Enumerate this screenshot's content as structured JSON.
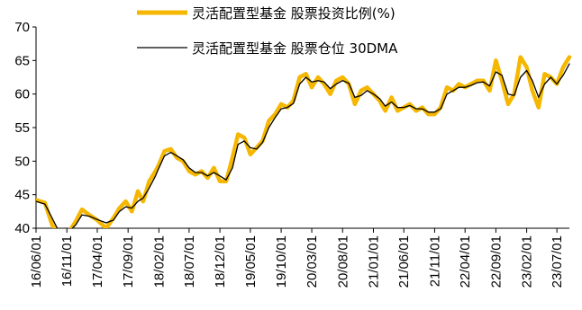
{
  "chart_data": {
    "type": "line",
    "title": "",
    "xlabel": "",
    "ylabel": "",
    "ylim": [
      40,
      70
    ],
    "yticks": [
      40,
      45,
      50,
      55,
      60,
      65,
      70
    ],
    "xticks": [
      "16/06/01",
      "16/11/01",
      "17/04/01",
      "17/09/01",
      "18/02/01",
      "18/07/01",
      "18/12/01",
      "19/05/01",
      "19/10/01",
      "20/03/01",
      "20/08/01",
      "21/01/01",
      "21/06/01",
      "21/11/01",
      "22/04/01",
      "22/09/01",
      "23/02/01",
      "23/07/01"
    ],
    "grid": false,
    "legend_position": "top-center",
    "series": [
      {
        "name": "灵活配置型基金 股票投资比例(%)",
        "color": "#F5B700",
        "style": "thick",
        "x": [
          "16/06/01",
          "16/07/15",
          "16/08/20",
          "16/10/01",
          "16/11/01",
          "16/12/15",
          "17/01/15",
          "17/02/20",
          "17/04/01",
          "17/05/15",
          "17/06/20",
          "17/07/20",
          "17/08/20",
          "17/09/20",
          "17/10/20",
          "17/11/15",
          "17/12/15",
          "18/01/15",
          "18/02/01",
          "18/03/01",
          "18/04/01",
          "18/05/01",
          "18/06/01",
          "18/07/01",
          "18/08/01",
          "18/09/01",
          "18/10/01",
          "18/11/01",
          "18/12/01",
          "19/01/01",
          "19/02/01",
          "19/03/01",
          "19/04/01",
          "19/05/01",
          "19/06/01",
          "19/07/01",
          "19/08/01",
          "19/09/01",
          "19/10/01",
          "19/11/01",
          "19/12/01",
          "20/01/01",
          "20/02/01",
          "20/03/01",
          "20/04/01",
          "20/05/01",
          "20/06/01",
          "20/07/01",
          "20/08/01",
          "20/09/01",
          "20/10/01",
          "20/11/01",
          "20/12/01",
          "21/01/01",
          "21/02/01",
          "21/03/01",
          "21/04/01",
          "21/05/01",
          "21/06/01",
          "21/07/01",
          "21/08/01",
          "21/09/01",
          "21/10/01",
          "21/11/01",
          "21/12/01",
          "22/01/01",
          "22/02/01",
          "22/03/01",
          "22/04/01",
          "22/05/01",
          "22/06/01",
          "22/07/01",
          "22/08/01",
          "22/09/01",
          "22/10/01",
          "22/11/01",
          "22/12/01",
          "23/01/01",
          "23/02/01",
          "23/03/01",
          "23/04/01",
          "23/05/01",
          "23/06/01",
          "23/07/01",
          "23/08/01",
          "23/09/01"
        ],
        "values": [
          44.2,
          43.8,
          40.5,
          38.5,
          39.0,
          41.0,
          42.8,
          42.0,
          41.2,
          40.0,
          41.5,
          43.0,
          44.0,
          42.5,
          45.5,
          44.0,
          47.0,
          48.5,
          49.5,
          51.5,
          51.8,
          50.5,
          50.0,
          48.5,
          48.0,
          48.5,
          47.5,
          49.0,
          47.0,
          47.0,
          50.5,
          54.0,
          53.5,
          51.0,
          52.0,
          53.0,
          56.0,
          57.0,
          58.5,
          58.0,
          59.0,
          62.5,
          63.0,
          61.0,
          62.5,
          61.5,
          60.0,
          62.0,
          62.5,
          61.5,
          58.5,
          60.5,
          61.0,
          60.0,
          59.0,
          57.5,
          59.5,
          57.5,
          58.0,
          58.5,
          57.5,
          58.0,
          57.0,
          57.0,
          58.0,
          61.0,
          60.5,
          61.5,
          61.0,
          61.5,
          62.0,
          62.0,
          60.5,
          65.0,
          62.0,
          58.5,
          60.0,
          65.5,
          64.0,
          60.5,
          58.0,
          63.0,
          62.5,
          61.5,
          64.0,
          65.5
        ]
      },
      {
        "name": "灵活配置型基金 股票仓位 30DMA",
        "color": "#000000",
        "style": "thin",
        "x": [
          "16/06/01",
          "16/07/15",
          "16/08/20",
          "16/10/01",
          "16/11/01",
          "16/12/15",
          "17/01/15",
          "17/02/20",
          "17/04/01",
          "17/05/15",
          "17/06/20",
          "17/07/20",
          "17/08/20",
          "17/09/20",
          "17/10/20",
          "17/11/15",
          "17/12/15",
          "18/01/15",
          "18/02/01",
          "18/03/01",
          "18/04/01",
          "18/05/01",
          "18/06/01",
          "18/07/01",
          "18/08/01",
          "18/09/01",
          "18/10/01",
          "18/11/01",
          "18/12/01",
          "19/01/01",
          "19/02/01",
          "19/03/01",
          "19/04/01",
          "19/05/01",
          "19/06/01",
          "19/07/01",
          "19/08/01",
          "19/09/01",
          "19/10/01",
          "19/11/01",
          "19/12/01",
          "20/01/01",
          "20/02/01",
          "20/03/01",
          "20/04/01",
          "20/05/01",
          "20/06/01",
          "20/07/01",
          "20/08/01",
          "20/09/01",
          "20/10/01",
          "20/11/01",
          "20/12/01",
          "21/01/01",
          "21/02/01",
          "21/03/01",
          "21/04/01",
          "21/05/01",
          "21/06/01",
          "21/07/01",
          "21/08/01",
          "21/09/01",
          "21/10/01",
          "21/11/01",
          "21/12/01",
          "22/01/01",
          "22/02/01",
          "22/03/01",
          "22/04/01",
          "22/05/01",
          "22/06/01",
          "22/07/01",
          "22/08/01",
          "22/09/01",
          "22/10/01",
          "22/11/01",
          "22/12/01",
          "23/01/01",
          "23/02/01",
          "23/03/01",
          "23/04/01",
          "23/05/01",
          "23/06/01",
          "23/07/01",
          "23/08/01",
          "23/09/01"
        ],
        "values": [
          44.0,
          43.6,
          41.5,
          39.0,
          39.2,
          40.5,
          42.0,
          41.8,
          41.3,
          40.8,
          41.2,
          42.5,
          43.2,
          43.0,
          44.0,
          44.5,
          46.0,
          47.8,
          49.0,
          50.8,
          51.3,
          50.8,
          50.2,
          49.0,
          48.3,
          48.3,
          47.8,
          48.3,
          47.8,
          47.2,
          49.0,
          52.5,
          53.0,
          52.0,
          51.8,
          52.8,
          55.0,
          56.5,
          57.8,
          58.0,
          58.6,
          61.5,
          62.5,
          61.8,
          62.0,
          61.8,
          60.8,
          61.5,
          62.0,
          61.6,
          59.5,
          59.8,
          60.5,
          60.0,
          59.3,
          58.2,
          58.8,
          58.0,
          58.0,
          58.3,
          57.8,
          57.8,
          57.3,
          57.3,
          57.8,
          60.0,
          60.5,
          61.0,
          61.0,
          61.3,
          61.7,
          61.8,
          61.2,
          63.3,
          62.8,
          60.0,
          59.8,
          62.5,
          63.5,
          62.0,
          59.5,
          61.5,
          62.5,
          61.5,
          62.8,
          64.5
        ]
      }
    ]
  },
  "legend": {
    "item1": "灵活配置型基金 股票投资比例(%)",
    "item2": "灵活配置型基金 股票仓位 30DMA"
  }
}
